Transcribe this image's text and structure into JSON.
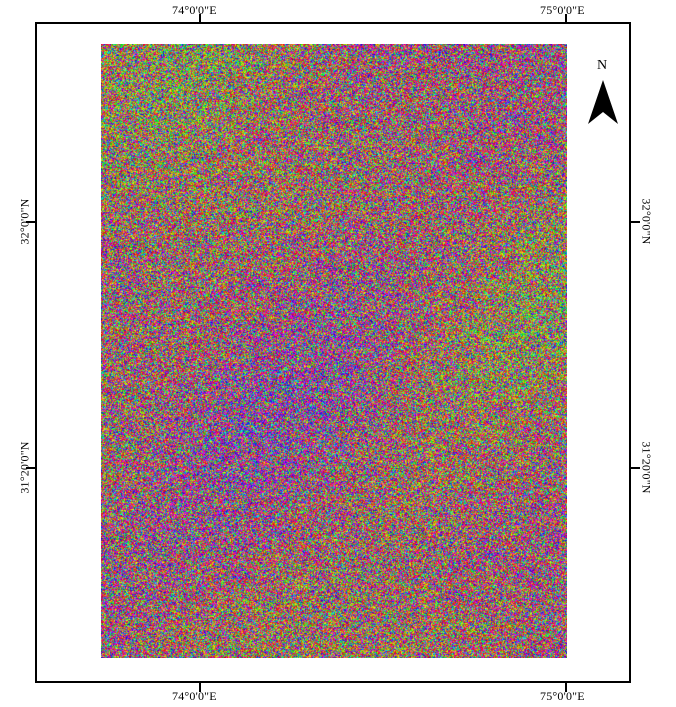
{
  "map": {
    "lon_labels": [
      "74°0'0\"E",
      "75°0'0\"E"
    ],
    "lat_labels": [
      "32°0'0\"N",
      "31°20'0\"N"
    ],
    "north_label": "N",
    "palette": [
      "#ff00ff",
      "#9a33ff",
      "#3355ff",
      "#22c7ff",
      "#2ee6b4",
      "#6aff3a",
      "#ffd200",
      "#ff7a2a",
      "#ff2a5a"
    ],
    "raster_type": "interferometric phase (rainbow fringes)"
  }
}
